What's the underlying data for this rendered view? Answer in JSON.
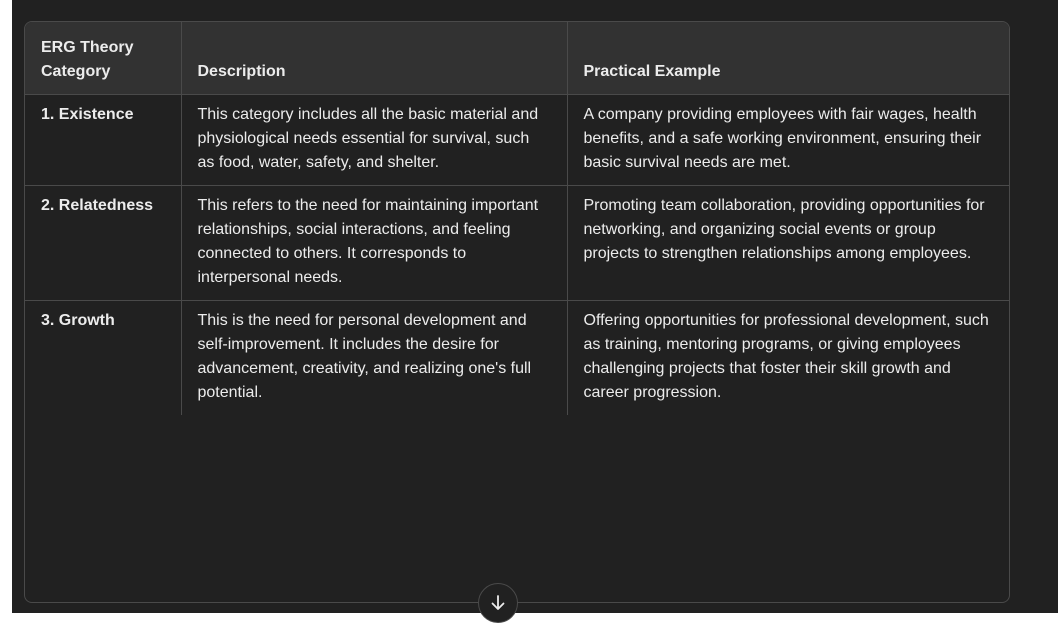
{
  "table": {
    "headers": [
      "ERG Theory Category",
      "Description",
      "Practical Example"
    ],
    "rows": [
      {
        "category": "1. Existence",
        "description": "This category includes all the basic material and physiological needs essential for survival, such as food, water, safety, and shelter.",
        "example": "A company providing employees with fair wages, health benefits, and a safe working environment, ensuring their basic survival needs are met."
      },
      {
        "category": "2. Relatedness",
        "description": "This refers to the need for maintaining important relationships, social interactions, and feeling connected to others. It corresponds to interpersonal needs.",
        "example": "Promoting team collaboration, providing opportunities for networking, and organizing social events or group projects to strengthen relationships among employees."
      },
      {
        "category": "3. Growth",
        "description": "This is the need for personal development and self-improvement. It includes the desire for advancement, creativity, and realizing one's full potential.",
        "example": "Offering opportunities for professional development, such as training, mentoring programs, or giving employees challenging projects that foster their skill growth and career progression."
      }
    ]
  },
  "scroll_button": {
    "icon": "arrow-down-icon"
  }
}
